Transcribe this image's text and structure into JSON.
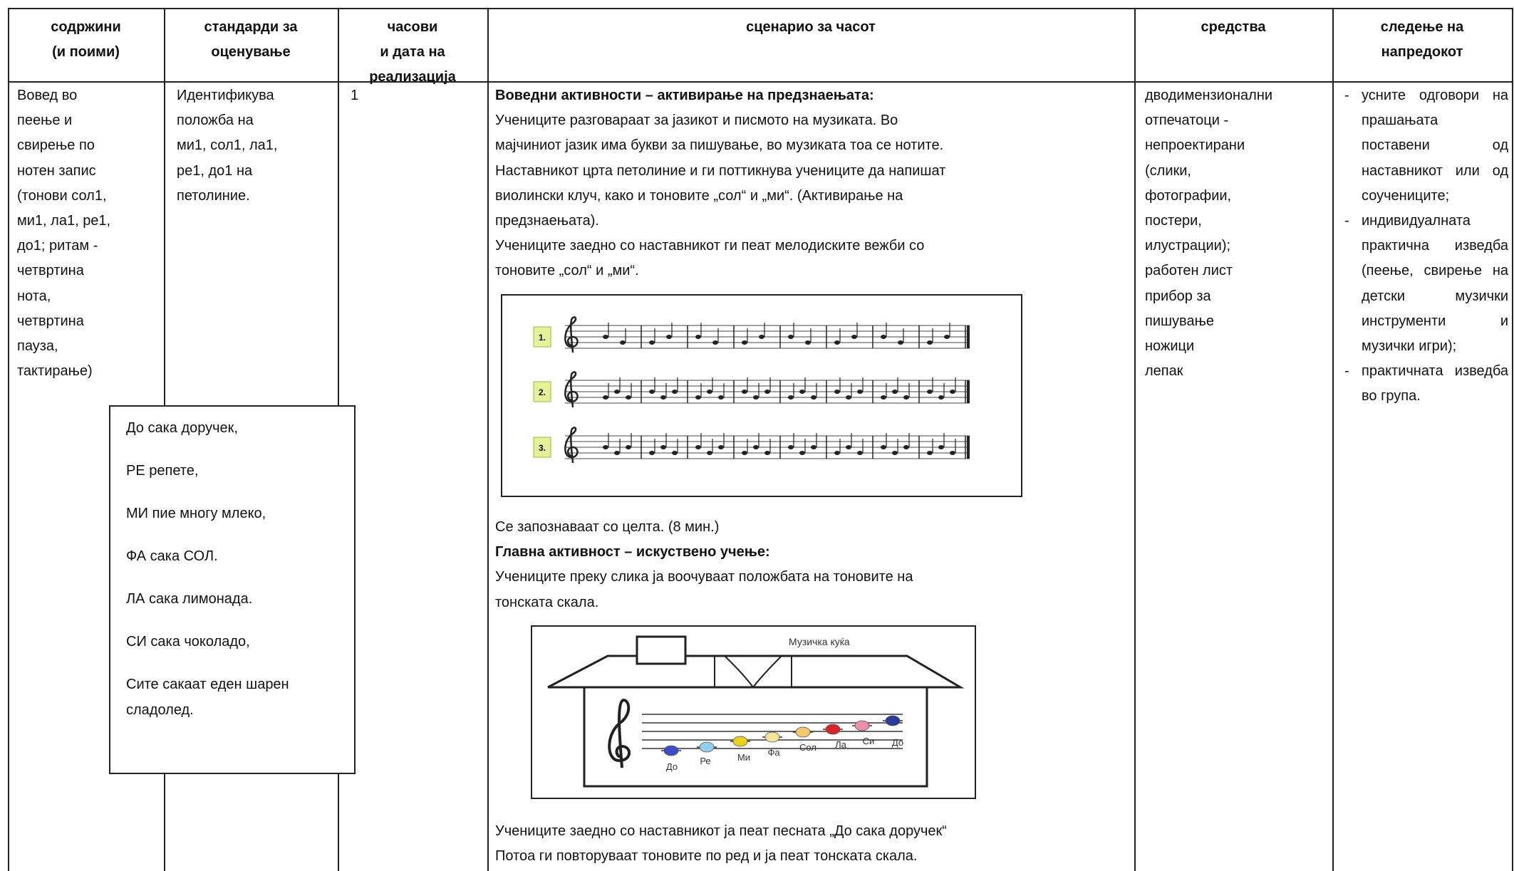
{
  "header": [
    [
      "содржини",
      "(и поими)"
    ],
    [
      "стандарди за",
      "оценување"
    ],
    [
      "часови",
      "и дата на",
      "реализација"
    ],
    [
      "сценарио за часот"
    ],
    [
      "средства"
    ],
    [
      "следење на",
      "напредокот"
    ]
  ],
  "row": {
    "content": [
      "Вовед во",
      "пеење и",
      "свирење по",
      "нотен запис",
      "(тонови сол1,",
      "ми1, ла1, ре1,",
      "до1; ритам -",
      "четвртина",
      "нота,",
      "четвртина",
      "пауза,",
      "тактирање)"
    ],
    "standards": [
      "Идентификува",
      "положба на",
      "ми1, сол1, ла1,",
      "ре1, до1 на",
      "петолиние."
    ],
    "hours": "1",
    "scenario": {
      "heading1": "Воведни активности – активирање на предзнаењата:",
      "para1": [
        "Учениците разговараат за јазикот и писмото на музиката. Во",
        "мајчиниот јазик има букви за пишување, во музиката тоа се нотите.",
        "Наставникот црта петолиние и ги поттикнува учениците да напишат",
        "виолински клуч, како и тоновите „сол“ и „ми“. (Активирање на",
        "предзнаењата).",
        "Учениците заедно со наставникот ги пеат мелодиските вежби со",
        "тоновите „сол“ и „ми“."
      ],
      "figure1": {
        "labels": [
          "1.",
          "2.",
          "3."
        ]
      },
      "after1": "Се запознаваат со целта. (8 мин.)",
      "heading2": "Главна активност – искуствено учење:",
      "para2": [
        "Учениците преку слика ја воочуваат положбата на тоновите на",
        "тонската скала."
      ],
      "figure2": {
        "title": "Музичка куќа",
        "notes": [
          "До",
          "Ре",
          "Ми",
          "Фа",
          "Сол",
          "Ла",
          "Си",
          "До"
        ]
      },
      "para3": [
        "Учениците заедно со наставникот ја пеат песната „До сака доручек“",
        "Потоа ги повторуваат тоновите по ред и ја пеат тонската скала."
      ]
    },
    "resources": [
      "дводимензионални",
      "отпечатоци -",
      "непроектирани",
      "(слики,",
      "фотографии,",
      "постери,",
      "илустрации);",
      "работен лист",
      "прибор за",
      "пишување",
      "ножици",
      "лепак"
    ],
    "monitoring": [
      "усните одговори на прашањата поставени од наставникот или од соучениците;",
      "индивидуалната практична изведба (пеење, свирење на детски музички инструменти и музички игри);",
      "практичната изведба во група."
    ]
  },
  "poem": [
    "До сака доручек,",
    "РЕ репете,",
    "МИ пие многу млеко,",
    "ФА сака СОЛ.",
    "ЛА сака лимонада.",
    "СИ сака чоколадо,",
    "Сите сакаат еден шарен",
    "сладолед."
  ]
}
